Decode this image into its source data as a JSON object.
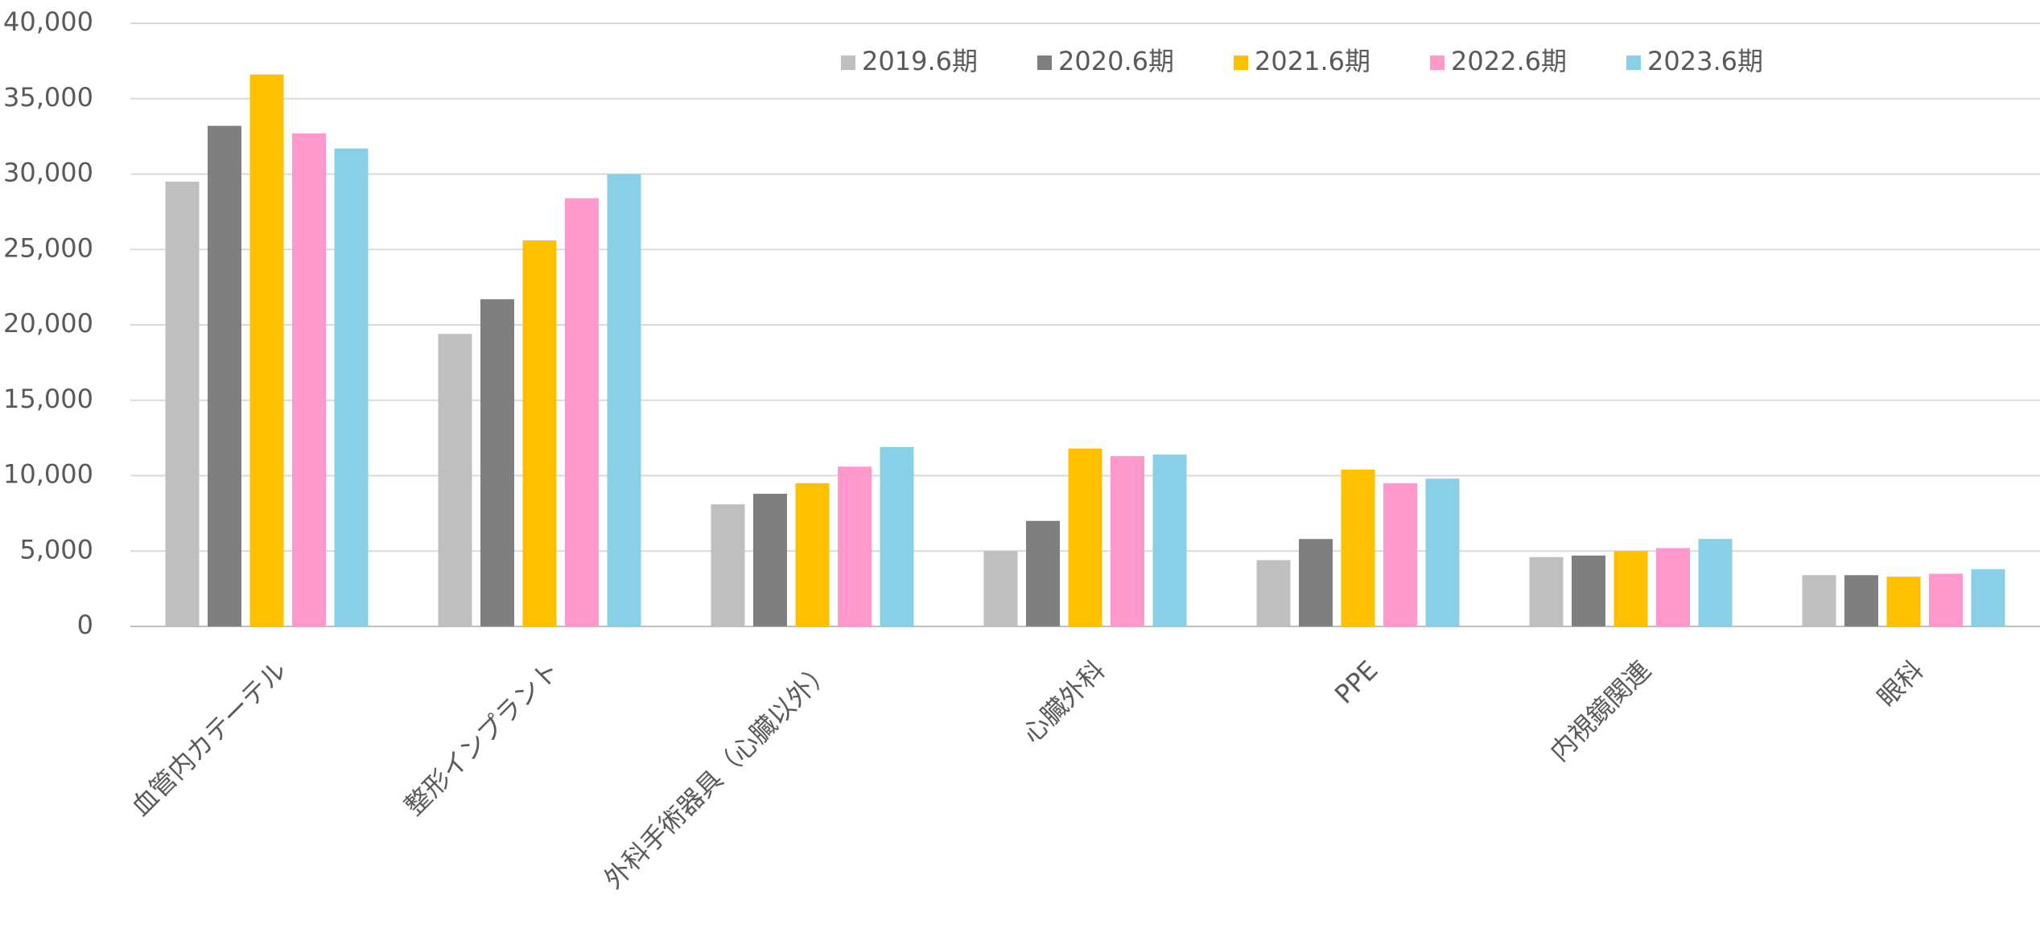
{
  "chart_data": {
    "type": "bar",
    "categories": [
      "血管内カテーテル",
      "整形インプラント",
      "外科手術器具（心臓以外）",
      "心臓外科",
      "PPE",
      "内視鏡関連",
      "眼科"
    ],
    "series": [
      {
        "name": "2019.6期",
        "color": "#bfbfbf",
        "values": [
          29500,
          19400,
          8100,
          5000,
          4400,
          4600,
          3400
        ]
      },
      {
        "name": "2020.6期",
        "color": "#7f7f7f",
        "values": [
          33200,
          21700,
          8800,
          7000,
          5800,
          4700,
          3400
        ]
      },
      {
        "name": "2021.6期",
        "color": "#ffc000",
        "values": [
          36600,
          25600,
          9500,
          11800,
          10400,
          5000,
          3300
        ]
      },
      {
        "name": "2022.6期",
        "color": "#ff99cc",
        "values": [
          32700,
          28400,
          10600,
          11300,
          9500,
          5200,
          3500
        ]
      },
      {
        "name": "2023.6期",
        "color": "#89cfe6",
        "values": [
          31700,
          30000,
          11900,
          11400,
          9800,
          5800,
          3800
        ]
      }
    ],
    "ylim": [
      0,
      40000
    ],
    "yticks": [
      0,
      {
        "value": 5000,
        "label": "5,000"
      },
      {
        "value": 10000,
        "label": "10,000"
      },
      {
        "value": 15000,
        "label": "15,000"
      },
      {
        "value": 20000,
        "label": "20,000"
      },
      {
        "value": 25000,
        "label": "25,000"
      },
      {
        "value": 30000,
        "label": "30,000"
      },
      {
        "value": 35000,
        "label": "35,000"
      },
      {
        "value": 40000,
        "label": "40,000"
      }
    ],
    "grid": true,
    "legend": "top"
  }
}
